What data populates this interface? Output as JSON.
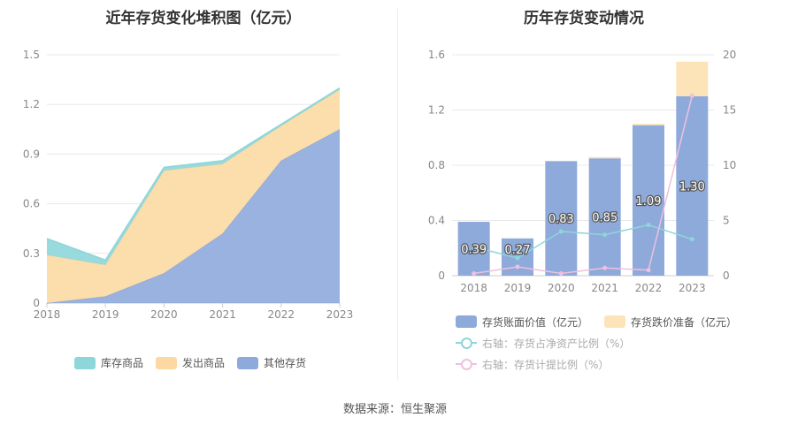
{
  "source": "数据来源：恒生聚源",
  "chart_data": [
    {
      "type": "area",
      "title": "近年存货变化堆积图（亿元）",
      "categories": [
        "2018",
        "2019",
        "2020",
        "2021",
        "2022",
        "2023"
      ],
      "ylim": [
        0,
        1.5
      ],
      "y_ticks": [
        "0",
        "0.3",
        "0.6",
        "0.9",
        "1.2",
        "1.5"
      ],
      "stacked": true,
      "series": [
        {
          "name": "其他存货",
          "color": "#8eaadb",
          "values": [
            0.0,
            0.04,
            0.18,
            0.42,
            0.86,
            1.05
          ]
        },
        {
          "name": "发出商品",
          "color": "#fcd9a3",
          "values": [
            0.29,
            0.19,
            0.62,
            0.42,
            0.21,
            0.24
          ]
        },
        {
          "name": "库存商品",
          "color": "#8dd6d9",
          "values": [
            0.1,
            0.03,
            0.02,
            0.02,
            0.01,
            0.01
          ]
        }
      ],
      "legend": [
        "库存商品",
        "发出商品",
        "其他存货"
      ],
      "legend_position": "bottom"
    },
    {
      "type": "bar",
      "title": "历年存货变动情况",
      "categories": [
        "2018",
        "2019",
        "2020",
        "2021",
        "2022",
        "2023"
      ],
      "ylim": [
        0,
        1.6
      ],
      "y_ticks": [
        "0",
        "0.4",
        "0.8",
        "1.2",
        "1.6"
      ],
      "y2lim": [
        0,
        20
      ],
      "y2_ticks": [
        "0",
        "5",
        "10",
        "15",
        "20"
      ],
      "series": [
        {
          "name": "存货账面价值（亿元）",
          "kind": "bar",
          "color": "#8eaadb",
          "values": [
            0.39,
            0.27,
            0.83,
            0.85,
            1.09,
            1.3
          ],
          "labels": [
            "0.39",
            "0.27",
            "0.83",
            "0.85",
            "1.09",
            "1.30"
          ]
        },
        {
          "name": "存货跌价准备（亿元）",
          "kind": "bar",
          "stacked": true,
          "color": "#fde4b8",
          "values": [
            0.0,
            0.0,
            0.0,
            0.01,
            0.01,
            0.25
          ]
        },
        {
          "name": "右轴：存货占净资产比例（%）",
          "kind": "line",
          "axis": "right",
          "color": "#8dd6d9",
          "values": [
            2.6,
            1.6,
            4.0,
            3.7,
            4.6,
            3.3
          ]
        },
        {
          "name": "右轴：存货计提比例（%）",
          "kind": "line",
          "axis": "right",
          "color": "#f0c0dc",
          "values": [
            0.2,
            0.8,
            0.2,
            0.7,
            0.5,
            16.3
          ]
        }
      ],
      "legend_position": "bottom"
    }
  ]
}
